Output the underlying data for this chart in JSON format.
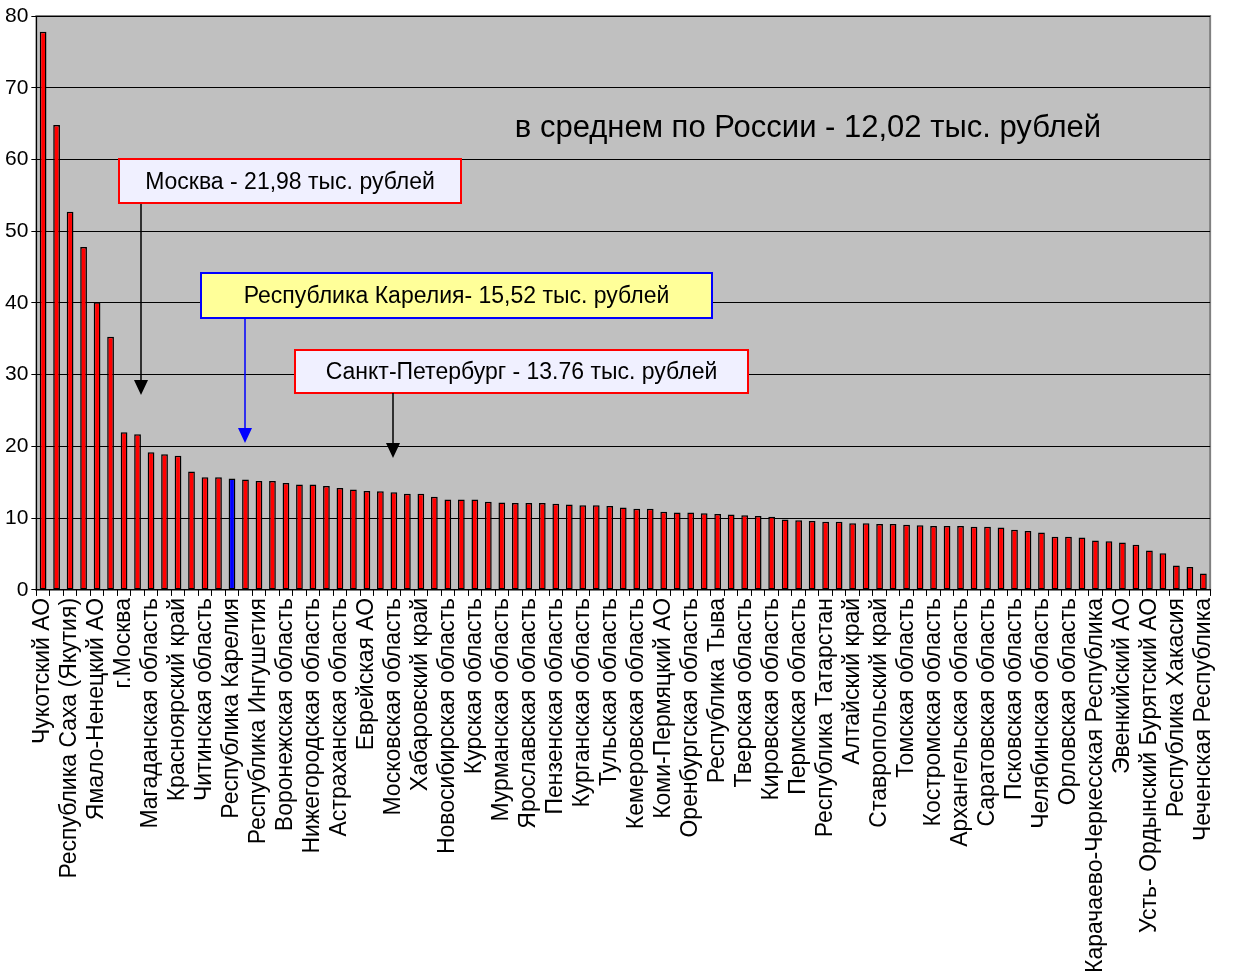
{
  "chart_data": {
    "type": "bar",
    "categories": [
      "Чукотский АО",
      null,
      "Республика Саха (Якутия)",
      null,
      "Ямало-Ненецкий АО",
      null,
      "г.Москва",
      null,
      "Магаданская область",
      null,
      "Красноярский край",
      null,
      "Читинская область",
      null,
      "Республика Карелия",
      null,
      "Республика Ингушетия",
      null,
      "Воронежская область",
      null,
      "Нижегородская область",
      null,
      "Астраханская область",
      null,
      "Еврейская АО",
      null,
      "Московская область",
      null,
      "Хабаровский край",
      null,
      "Новосибирская область",
      null,
      "Курская область",
      null,
      "Мурманская область",
      null,
      "Ярославская область",
      null,
      "Пензенская область",
      null,
      "Курганская область",
      null,
      "Тульская область",
      null,
      "Кемеровская область",
      null,
      "Коми-Пермяцкий АО",
      null,
      "Оренбургская область",
      null,
      "Республика Тыва",
      null,
      "Тверская область",
      null,
      "Кировская область",
      null,
      "Пермская область",
      null,
      "Республика Татарстан",
      null,
      "Алтайский край",
      null,
      "Ставропольский край",
      null,
      "Томская область",
      null,
      "Костромская область",
      null,
      "Архангельская область",
      null,
      "Саратовская область",
      null,
      "Псковская область",
      null,
      "Челябинская область",
      null,
      "Орловская область",
      null,
      "Карачаево-Черкесская Республика",
      null,
      "Эвенкийский АО",
      null,
      "Усть- Ордынский Бурятский АО",
      null,
      "Республика Хакасия",
      null,
      "Чеченская Республика"
    ],
    "values": [
      77.8,
      64.8,
      52.7,
      47.8,
      40.1,
      35.3,
      21.98,
      21.7,
      19.2,
      18.9,
      18.7,
      16.5,
      15.7,
      15.7,
      15.52,
      15.4,
      15.2,
      15.2,
      14.9,
      14.7,
      14.7,
      14.5,
      14.2,
      14.0,
      13.8,
      13.76,
      13.6,
      13.4,
      13.4,
      13.0,
      12.6,
      12.6,
      12.6,
      12.3,
      12.2,
      12.1,
      12.1,
      12.1,
      12.0,
      11.9,
      11.8,
      11.8,
      11.7,
      11.5,
      11.3,
      11.3,
      10.9,
      10.8,
      10.8,
      10.7,
      10.6,
      10.5,
      10.4,
      10.3,
      10.2,
      9.8,
      9.7,
      9.6,
      9.5,
      9.5,
      9.3,
      9.3,
      9.2,
      9.2,
      9.1,
      9.0,
      8.9,
      8.9,
      8.9,
      8.8,
      8.8,
      8.7,
      8.4,
      8.2,
      8.0,
      7.4,
      7.4,
      7.3,
      6.9,
      6.8,
      6.6,
      6.3,
      5.5,
      5.1,
      3.4,
      3.2,
      2.3
    ],
    "colors": [
      "#ff0000",
      "#ff0000",
      "#ff0000",
      "#ff0000",
      "#ff0000",
      "#ff0000",
      "#ff0000",
      "#ff0000",
      "#ff0000",
      "#ff0000",
      "#ff0000",
      "#ff0000",
      "#ff0000",
      "#ff0000",
      "#0000ff",
      "#ff0000",
      "#ff0000",
      "#ff0000",
      "#ff0000",
      "#ff0000",
      "#ff0000",
      "#ff0000",
      "#ff0000",
      "#ff0000",
      "#ff0000",
      "#ff0000",
      "#ff0000",
      "#ff0000",
      "#ff0000",
      "#ff0000",
      "#ff0000",
      "#ff0000",
      "#ff0000",
      "#ff0000",
      "#ff0000",
      "#ff0000",
      "#ff0000",
      "#ff0000",
      "#ff0000",
      "#ff0000",
      "#ff0000",
      "#ff0000",
      "#ff0000",
      "#ff0000",
      "#ff0000",
      "#ff0000",
      "#ff0000",
      "#ff0000",
      "#ff0000",
      "#ff0000",
      "#ff0000",
      "#ff0000",
      "#ff0000",
      "#ff0000",
      "#ff0000",
      "#ff0000",
      "#ff0000",
      "#ff0000",
      "#ff0000",
      "#ff0000",
      "#ff0000",
      "#ff0000",
      "#ff0000",
      "#ff0000",
      "#ff0000",
      "#ff0000",
      "#ff0000",
      "#ff0000",
      "#ff0000",
      "#ff0000",
      "#ff0000",
      "#ff0000",
      "#ff0000",
      "#ff0000",
      "#ff0000",
      "#ff0000",
      "#ff0000",
      "#ff0000",
      "#ff0000",
      "#ff0000",
      "#ff0000",
      "#ff0000",
      "#ff0000",
      "#ff0000",
      "#ff0000",
      "#ff0000",
      "#ff0000"
    ],
    "ylim": [
      0,
      80
    ],
    "yticks": [
      0,
      10,
      20,
      30,
      40,
      50,
      60,
      70,
      80
    ],
    "grid": "y",
    "legend": false,
    "annotations": [
      "в среднем по России - 12,02 тыс. рублей",
      "Москва - 21,98 тыс. рублей",
      "Республика Карелия- 15,52 тыс. рублей",
      "Санкт-Петербург - 13.76 тыс. рублей"
    ]
  }
}
